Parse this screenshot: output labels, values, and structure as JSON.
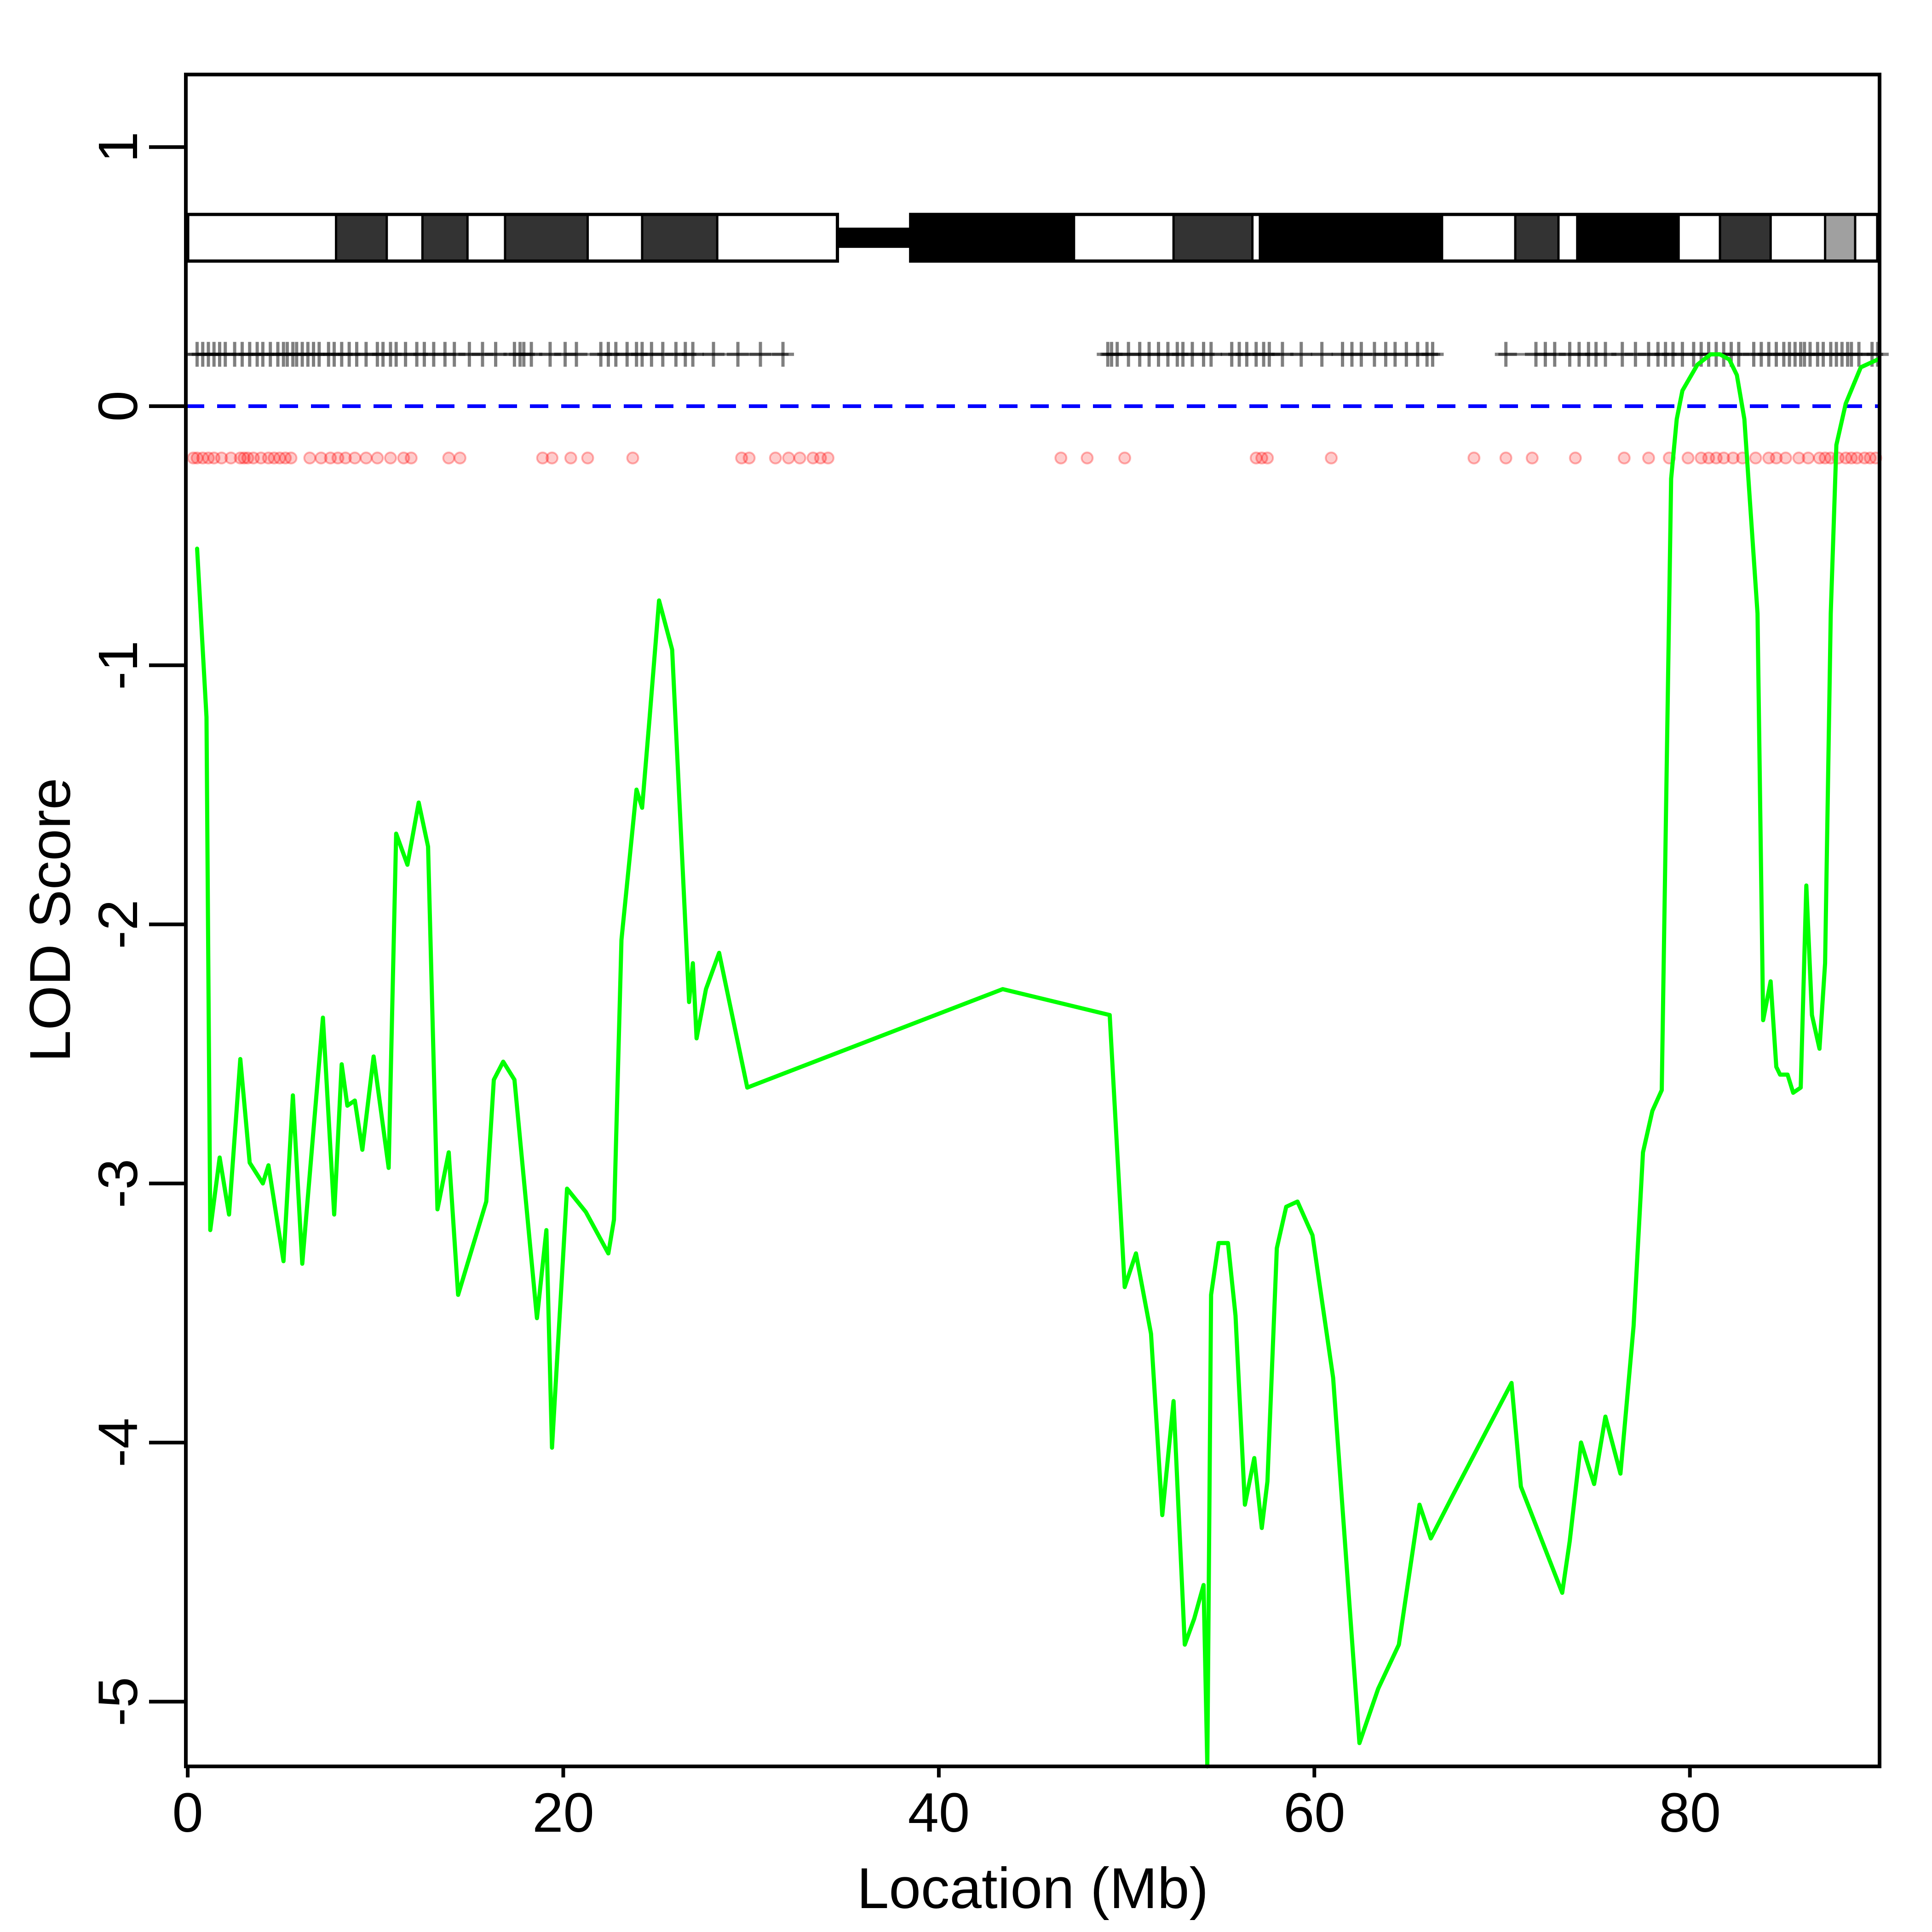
{
  "chart_data": {
    "type": "line",
    "xlabel": "Location (Mb)",
    "ylabel": "LOD Score",
    "xlim": [
      -0.1,
      90.1
    ],
    "ylim": [
      -5.25,
      1.28
    ],
    "x_ticks": [
      0,
      20,
      40,
      60,
      80
    ],
    "x_tick_labels": [
      "0",
      "20",
      "40",
      "60",
      "80"
    ],
    "y_ticks": [
      -5,
      -4,
      -3,
      -2,
      -1,
      0,
      1
    ],
    "y_tick_labels": [
      "-5",
      "-4",
      "-3",
      "-2",
      "-1",
      "0",
      "1"
    ],
    "grid": false,
    "legend": "none",
    "reference_line": {
      "y": 0,
      "style": "dashed",
      "color": "#0000ff"
    },
    "colors": {
      "lod": "#00ff00",
      "markers": "#000000",
      "snps": "#ff0000",
      "reference": "#0000ff"
    },
    "ideogram": {
      "y_range": [
        0.56,
        0.74
      ],
      "p_arm": [
        0,
        34.6
      ],
      "centromere": [
        34.6,
        38.5
      ],
      "q_arm": [
        38.5,
        90.0
      ],
      "bands": [
        {
          "start": 7.9,
          "end": 10.6,
          "color": "#333333"
        },
        {
          "start": 12.5,
          "end": 14.9,
          "color": "#333333"
        },
        {
          "start": 16.9,
          "end": 21.3,
          "color": "#333333"
        },
        {
          "start": 24.2,
          "end": 28.2,
          "color": "#333333"
        },
        {
          "start": 38.5,
          "end": 47.2,
          "color": "#000000"
        },
        {
          "start": 52.5,
          "end": 56.7,
          "color": "#333333"
        },
        {
          "start": 57.1,
          "end": 66.8,
          "color": "#000000"
        },
        {
          "start": 70.7,
          "end": 73.0,
          "color": "#333333"
        },
        {
          "start": 74.0,
          "end": 79.4,
          "color": "#000000"
        },
        {
          "start": 81.6,
          "end": 84.3,
          "color": "#333333"
        },
        {
          "start": 87.2,
          "end": 88.8,
          "color": "#a0a0a0"
        }
      ]
    },
    "marker_track": {
      "y": 0.2,
      "positions": [
        0.5,
        0.8,
        1.1,
        1.4,
        1.7,
        2.0,
        2.5,
        2.9,
        3.3,
        3.7,
        4.0,
        4.4,
        4.8,
        5.1,
        5.3,
        5.6,
        5.8,
        6.1,
        6.4,
        6.7,
        7.0,
        7.5,
        7.8,
        8.2,
        8.6,
        9.0,
        9.5,
        10.1,
        10.4,
        10.8,
        11.1,
        11.6,
        12.2,
        12.6,
        13.1,
        13.7,
        14.2,
        15.0,
        15.7,
        16.4,
        17.4,
        17.7,
        17.9,
        18.3,
        19.3,
        20.1,
        20.7,
        22.0,
        22.4,
        22.8,
        23.4,
        23.9,
        24.2,
        24.7,
        25.3,
        26.0,
        26.5,
        26.9,
        28.0,
        29.3,
        30.5,
        31.7,
        49.0,
        49.2,
        49.5,
        50.1,
        50.7,
        51.2,
        51.7,
        52.2,
        52.7,
        53.0,
        53.5,
        54.1,
        54.5,
        55.6,
        56.0,
        56.4,
        56.9,
        57.3,
        57.6,
        58.3,
        59.3,
        60.4,
        61.5,
        62.0,
        62.5,
        63.2,
        63.8,
        64.3,
        64.9,
        65.5,
        66.0,
        66.3,
        70.2,
        71.8,
        72.3,
        72.8,
        73.6,
        74.1,
        74.6,
        75.0,
        75.5,
        76.4,
        77.1,
        77.8,
        78.3,
        78.7,
        79.1,
        79.6,
        80.2,
        80.6,
        81.0,
        81.4,
        81.8,
        82.2,
        82.6,
        83.4,
        83.8,
        84.2,
        84.6,
        85.0,
        85.3,
        85.6,
        85.9,
        86.1,
        86.4,
        86.8,
        87.1,
        87.5,
        87.8,
        88.1,
        88.4,
        88.6,
        89.0,
        89.7,
        90.0
      ]
    },
    "snp_track": {
      "y": -0.2,
      "positions": [
        0.3,
        0.5,
        0.8,
        1.1,
        1.4,
        1.8,
        2.3,
        2.8,
        3.0,
        3.2,
        3.5,
        3.9,
        4.3,
        4.6,
        4.9,
        5.2,
        5.5,
        6.5,
        7.1,
        7.6,
        8.0,
        8.4,
        8.9,
        9.5,
        10.1,
        10.8,
        11.5,
        11.9,
        13.9,
        14.5,
        18.9,
        19.4,
        20.4,
        21.3,
        23.7,
        29.5,
        29.9,
        31.3,
        32.0,
        32.6,
        33.3,
        33.7,
        34.1,
        46.5,
        47.9,
        49.9,
        56.9,
        57.2,
        57.5,
        60.9,
        68.5,
        70.2,
        71.6,
        73.9,
        76.5,
        77.8,
        78.9,
        79.9,
        80.6,
        81.0,
        81.4,
        81.8,
        82.3,
        82.8,
        83.5,
        84.2,
        84.6,
        85.1,
        85.8,
        86.3,
        86.9,
        87.2,
        87.5,
        87.9,
        88.3,
        88.6,
        88.9,
        89.3,
        89.6,
        89.9
      ]
    },
    "series": [
      {
        "x": [
          0.5,
          1.0,
          1.2,
          1.7,
          2.2,
          2.8,
          3.3,
          4.0,
          4.3,
          5.1,
          5.6,
          6.1,
          7.2,
          7.8,
          8.2,
          8.5,
          8.9,
          9.3,
          9.9,
          10.7,
          11.1,
          11.7,
          12.3,
          12.8,
          13.3,
          13.9,
          14.4,
          15.9,
          16.3,
          16.8,
          17.4,
          18.6,
          19.1,
          19.4,
          20.2,
          21.2,
          22.4,
          22.7,
          23.1,
          23.9,
          24.2,
          24.6,
          25.1,
          25.8,
          26.7,
          26.9,
          27.1,
          27.6,
          28.3,
          29.8,
          43.4,
          49.1,
          49.9,
          50.5,
          51.3,
          51.9,
          52.5,
          53.1,
          53.6,
          54.1,
          54.3,
          54.5,
          54.9,
          55.4,
          55.8,
          56.3,
          56.8,
          57.2,
          57.5,
          58.0,
          58.5,
          59.1,
          59.9,
          61.0,
          62.4,
          63.4,
          64.5,
          65.6,
          66.2,
          67.4,
          70.5,
          71.0,
          73.2,
          73.6,
          74.2,
          74.9,
          75.5,
          76.3,
          77.0,
          77.5,
          78.0,
          78.5,
          79.0,
          79.3,
          79.6,
          80.4,
          81.1,
          81.6,
          82.1,
          82.5,
          82.9,
          83.6,
          83.9,
          84.3,
          84.6,
          84.8,
          85.2,
          85.5,
          85.9,
          86.2,
          86.5,
          86.9,
          87.2,
          87.5,
          87.8,
          88.3,
          89.1,
          90.0
        ],
        "y": [
          -0.55,
          -1.2,
          -3.18,
          -2.9,
          -3.12,
          -2.52,
          -2.92,
          -3.0,
          -2.93,
          -3.3,
          -2.66,
          -3.31,
          -2.36,
          -3.12,
          -2.54,
          -2.7,
          -2.68,
          -2.87,
          -2.51,
          -2.94,
          -1.65,
          -1.77,
          -1.53,
          -1.7,
          -3.1,
          -2.88,
          -3.43,
          -3.07,
          -2.6,
          -2.53,
          -2.6,
          -3.52,
          -3.18,
          -4.02,
          -3.02,
          -3.11,
          -3.27,
          -3.14,
          -2.06,
          -1.48,
          -1.55,
          -1.2,
          -0.75,
          -0.94,
          -2.3,
          -2.15,
          -2.44,
          -2.25,
          -2.11,
          -2.63,
          -2.25,
          -2.35,
          -3.4,
          -3.27,
          -3.58,
          -4.28,
          -3.84,
          -4.78,
          -4.68,
          -4.55,
          -5.25,
          -3.43,
          -3.23,
          -3.23,
          -3.51,
          -4.24,
          -4.06,
          -4.33,
          -4.15,
          -3.25,
          -3.09,
          -3.07,
          -3.2,
          -3.75,
          -5.16,
          -4.95,
          -4.78,
          -4.24,
          -4.37,
          -4.2,
          -3.77,
          -4.17,
          -4.58,
          -4.38,
          -4.0,
          -4.16,
          -3.9,
          -4.12,
          -3.55,
          -2.88,
          -2.72,
          -2.64,
          -0.28,
          -0.05,
          0.06,
          0.16,
          0.2,
          0.2,
          0.18,
          0.12,
          -0.05,
          -0.8,
          -2.37,
          -2.22,
          -2.55,
          -2.58,
          -2.58,
          -2.65,
          -2.63,
          -1.85,
          -2.35,
          -2.48,
          -2.15,
          -0.8,
          -0.15,
          0.01,
          0.15,
          0.18
        ]
      }
    ]
  }
}
